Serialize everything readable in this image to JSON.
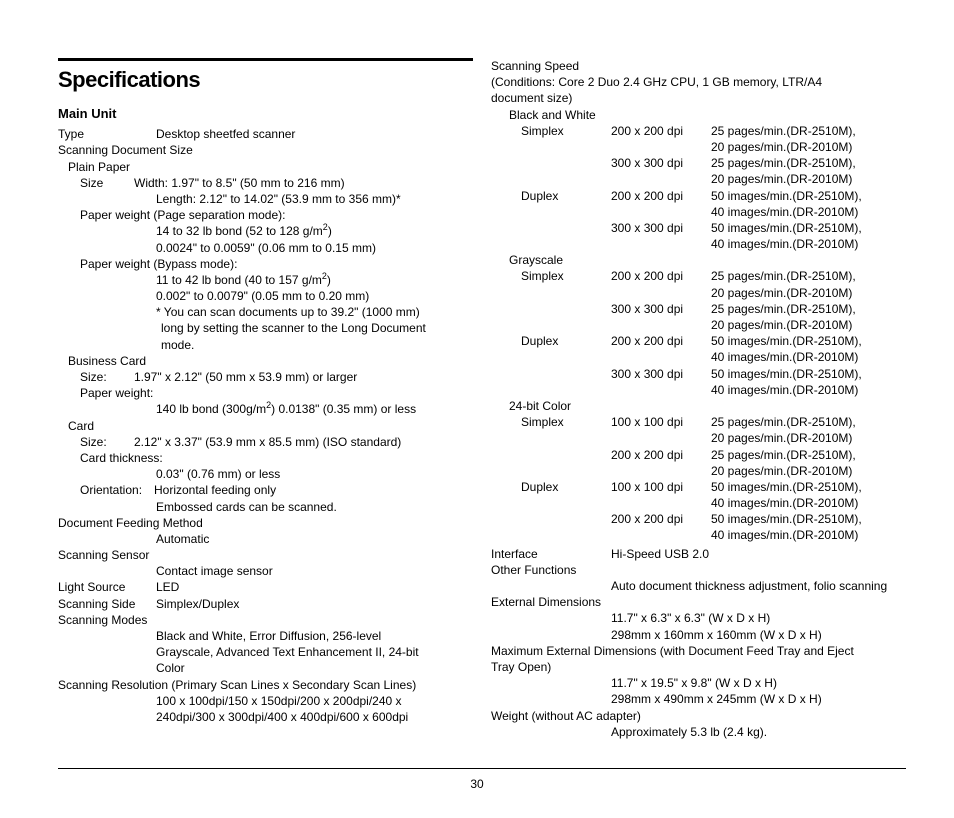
{
  "title": "Specifications",
  "subhead": "Main Unit",
  "pageNumber": "30",
  "left": {
    "type": {
      "label": "Type",
      "value": "Desktop sheetfed scanner"
    },
    "scanDocSize": "Scanning Document Size",
    "plainPaper": "Plain Paper",
    "size": {
      "label": "Size",
      "width": "Width: 1.97\" to 8.5\" (50 mm to 216 mm)",
      "length": "Length: 2.12\" to 14.02\" (53.9 mm to 356 mm)*"
    },
    "pwSep": {
      "label": "Paper weight (Page separation mode):",
      "l1": "14 to 32 lb bond (52 to 128 g/m",
      "l1s": "2",
      "l1e": ")",
      "l2": "0.0024\" to 0.0059\" (0.06 mm to 0.15 mm)"
    },
    "pwBypass": {
      "label": "Paper weight (Bypass mode):",
      "l1": "11 to 42 lb bond (40 to 157 g/m",
      "l1s": "2",
      "l1e": ")",
      "l2": "0.002\" to 0.0079\" (0.05 mm to 0.20 mm)",
      "n1": "* You can scan documents up to 39.2\" (1000 mm)",
      "n2": "long by setting the scanner to the Long Document",
      "n3": "mode."
    },
    "bizCard": {
      "label": "Business Card",
      "sizeLbl": "Size:",
      "sizeVal": "1.97\" x 2.12\" (50 mm x 53.9 mm) or larger",
      "pwLbl": "Paper weight:",
      "pwVal": "140 lb bond (300g/m",
      "pwS": "2",
      "pwE": ") 0.0138\" (0.35 mm) or less"
    },
    "card": {
      "label": "Card",
      "sizeLbl": "Size:",
      "sizeVal": "2.12\" x 3.37\" (53.9 mm x 85.5 mm) (ISO standard)",
      "thickLbl": "Card thickness:",
      "thickVal": "0.03\" (0.76 mm) or less",
      "orientLbl": "Orientation:",
      "orientVal": "Horizontal feeding only",
      "emboss": "Embossed cards can be scanned."
    },
    "feed": {
      "label": "Document Feeding Method",
      "value": "Automatic"
    },
    "sensor": {
      "label": "Scanning Sensor",
      "value": "Contact image sensor"
    },
    "light": {
      "label": "Light Source",
      "value": "LED"
    },
    "side": {
      "label": "Scanning Side",
      "value": "Simplex/Duplex"
    },
    "modes": {
      "label": "Scanning Modes",
      "l1": "Black and White, Error Diffusion, 256-level",
      "l2": "Grayscale, Advanced Text Enhancement II, 24-bit",
      "l3": "Color"
    },
    "res": {
      "label": "Scanning Resolution (Primary Scan Lines x Secondary Scan Lines)",
      "l1": "100 x 100dpi/150 x 150dpi/200 x 200dpi/240 x",
      "l2": "240dpi/300 x 300dpi/400 x 400dpi/600 x 600dpi"
    }
  },
  "right": {
    "speed": "Scanning Speed",
    "cond1": "(Conditions: Core 2 Duo 2.4 GHz CPU, 1 GB memory, LTR/A4",
    "cond2": "document size)",
    "groups": {
      "bw": "Black and White",
      "gs": "Grayscale",
      "color": "24-bit Color"
    },
    "rows": [
      [
        "bw",
        "Simplex",
        "200 x 200 dpi",
        "25 pages/min.(DR-2510M),",
        "20 pages/min.(DR-2010M)"
      ],
      [
        "bw",
        "",
        "300 x 300 dpi",
        "25 pages/min.(DR-2510M),",
        "20 pages/min.(DR-2010M)"
      ],
      [
        "bw",
        "Duplex",
        "200 x 200 dpi",
        "50 images/min.(DR-2510M),",
        "40 images/min.(DR-2010M)"
      ],
      [
        "bw",
        "",
        "300 x 300 dpi",
        "50 images/min.(DR-2510M),",
        "40 images/min.(DR-2010M)"
      ],
      [
        "gs",
        "Simplex",
        "200 x 200 dpi",
        "25 pages/min.(DR-2510M),",
        "20 pages/min.(DR-2010M)"
      ],
      [
        "gs",
        "",
        "300 x 300 dpi",
        "25 pages/min.(DR-2510M),",
        "20 pages/min.(DR-2010M)"
      ],
      [
        "gs",
        "Duplex",
        "200 x 200 dpi",
        "50 images/min.(DR-2510M),",
        "40 images/min.(DR-2010M)"
      ],
      [
        "gs",
        "",
        "300 x 300 dpi",
        "50 images/min.(DR-2510M),",
        "40 images/min.(DR-2010M)"
      ],
      [
        "color",
        "Simplex",
        "100 x 100 dpi",
        "25 pages/min.(DR-2510M),",
        "20 pages/min.(DR-2010M)"
      ],
      [
        "color",
        "",
        "200 x 200 dpi",
        "25 pages/min.(DR-2510M),",
        "20 pages/min.(DR-2010M)"
      ],
      [
        "color",
        "Duplex",
        "100 x 100 dpi",
        "50 images/min.(DR-2510M),",
        "40 images/min.(DR-2010M)"
      ],
      [
        "color",
        "",
        "200 x 200 dpi",
        "50 images/min.(DR-2510M),",
        "40 images/min.(DR-2010M)"
      ]
    ],
    "iface": {
      "label": "Interface",
      "value": "Hi-Speed USB 2.0"
    },
    "other": {
      "label": "Other Functions",
      "value": "Auto document thickness adjustment, folio scanning"
    },
    "ext": {
      "label": "External Dimensions",
      "l1": "11.7\" x 6.3\" x 6.3\" (W x D x H)",
      "l2": "298mm x 160mm x 160mm (W x D x H)"
    },
    "max": {
      "label1": "Maximum External Dimensions (with Document Feed Tray and Eject",
      "label2": "Tray Open)",
      "l1": "11.7\" x 19.5\" x 9.8\" (W x D x H)",
      "l2": "298mm x 490mm x 245mm (W x D x H)"
    },
    "weight": {
      "label": "Weight (without AC adapter)",
      "value": "Approximately 5.3 lb (2.4 kg)."
    }
  }
}
